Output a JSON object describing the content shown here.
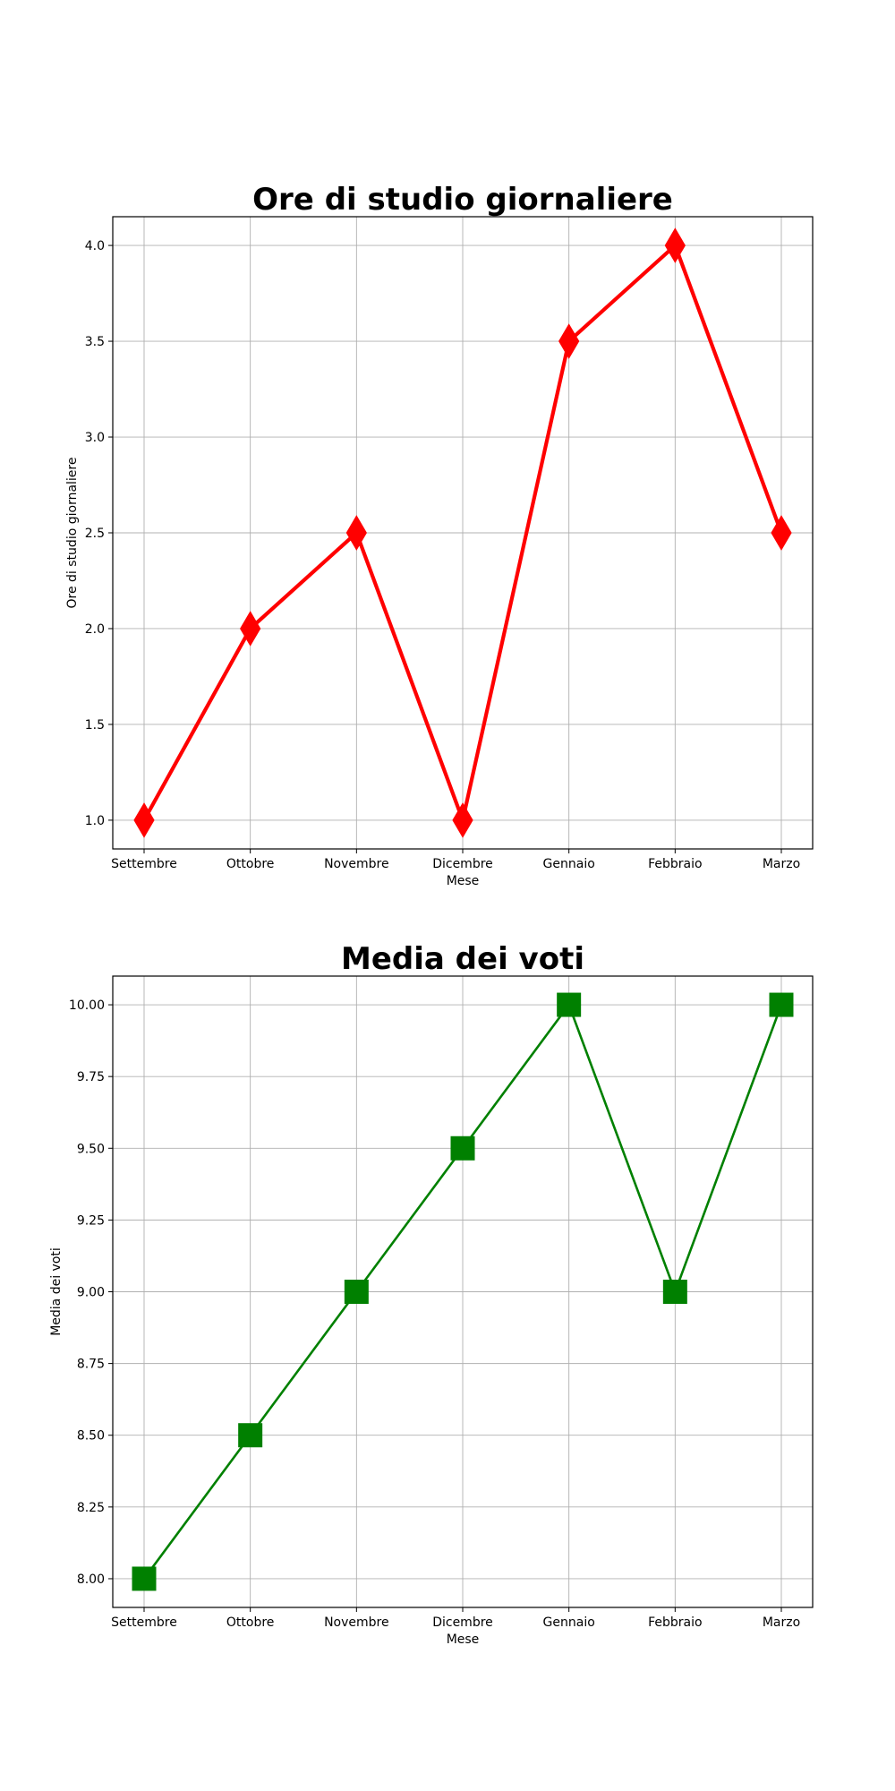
{
  "chart_data": [
    {
      "type": "line",
      "title": "Ore di studio giornaliere",
      "xlabel": "Mese",
      "ylabel": "Ore di studio giornaliere",
      "categories": [
        "Settembre",
        "Ottobre",
        "Novembre",
        "Dicembre",
        "Gennaio",
        "Febbraio",
        "Marzo"
      ],
      "series": [
        {
          "values": [
            1.0,
            2.0,
            2.5,
            1.0,
            3.5,
            4.0,
            2.5
          ],
          "color": "#ff0000",
          "marker": "diamond"
        }
      ],
      "ylim": [
        0.85,
        4.15
      ],
      "yticks": [
        "1.0",
        "1.5",
        "2.0",
        "2.5",
        "3.0",
        "3.5",
        "4.0"
      ],
      "grid": true
    },
    {
      "type": "line",
      "title": "Media dei voti",
      "xlabel": "Mese",
      "ylabel": "Media dei voti",
      "categories": [
        "Settembre",
        "Ottobre",
        "Novembre",
        "Dicembre",
        "Gennaio",
        "Febbraio",
        "Marzo"
      ],
      "series": [
        {
          "values": [
            8.0,
            8.5,
            9.0,
            9.5,
            10.0,
            9.0,
            10.0
          ],
          "color": "#008000",
          "marker": "square"
        }
      ],
      "ylim": [
        7.9,
        10.1
      ],
      "yticks": [
        "8.00",
        "8.25",
        "8.50",
        "8.75",
        "9.00",
        "9.25",
        "9.50",
        "9.75",
        "10.00"
      ],
      "grid": true
    }
  ]
}
